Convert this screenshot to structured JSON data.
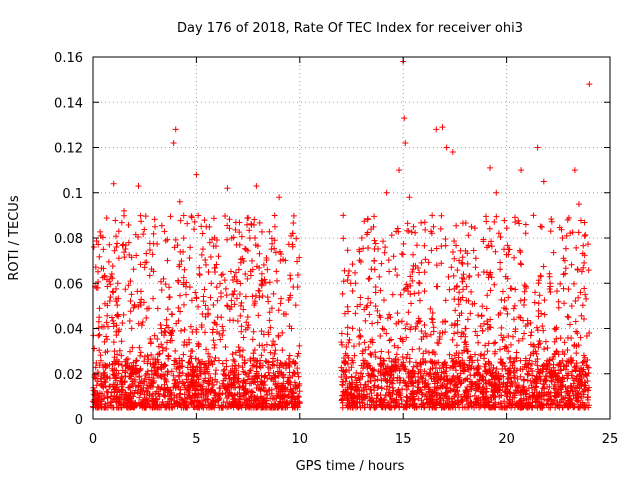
{
  "chart_data": {
    "type": "scatter",
    "title": "Day 176 of 2018, Rate Of TEC Index for receiver ohi3",
    "xlabel": "GPS time / hours",
    "ylabel": "ROTI / TECUs",
    "xlim": [
      0,
      25
    ],
    "ylim": [
      0,
      0.16
    ],
    "xticks": [
      0,
      5,
      10,
      15,
      20,
      25
    ],
    "xtick_labels": [
      "0",
      "5",
      "10",
      "15",
      "20",
      "25"
    ],
    "yticks": [
      0,
      0.02,
      0.04,
      0.06,
      0.08,
      0.1,
      0.12,
      0.14,
      0.16
    ],
    "ytick_labels": [
      "0",
      "0.02",
      "0.04",
      "0.06",
      "0.08",
      "0.1",
      "0.12",
      "0.14",
      "0.16"
    ],
    "grid": true,
    "marker": "+",
    "series": [
      {
        "name": "ROTI",
        "color": "#ff0000",
        "data_gap_hours": [
          10,
          12
        ],
        "points": [
          [
            0.1,
            0.012
          ],
          [
            0.3,
            0.045
          ],
          [
            0.5,
            0.075
          ],
          [
            0.7,
            0.03
          ],
          [
            1.0,
            0.104
          ],
          [
            1.2,
            0.06
          ],
          [
            1.5,
            0.092
          ],
          [
            1.8,
            0.02
          ],
          [
            2.0,
            0.05
          ],
          [
            2.2,
            0.103
          ],
          [
            2.5,
            0.067
          ],
          [
            2.8,
            0.015
          ],
          [
            3.0,
            0.085
          ],
          [
            3.3,
            0.04
          ],
          [
            3.6,
            0.07
          ],
          [
            3.9,
            0.122
          ],
          [
            4.0,
            0.128
          ],
          [
            4.2,
            0.096
          ],
          [
            4.5,
            0.055
          ],
          [
            4.8,
            0.03
          ],
          [
            5.0,
            0.108
          ],
          [
            5.3,
            0.082
          ],
          [
            5.6,
            0.02
          ],
          [
            5.9,
            0.065
          ],
          [
            6.2,
            0.045
          ],
          [
            6.5,
            0.102
          ],
          [
            6.8,
            0.055
          ],
          [
            7.1,
            0.03
          ],
          [
            7.4,
            0.075
          ],
          [
            7.7,
            0.018
          ],
          [
            7.9,
            0.103
          ],
          [
            8.2,
            0.06
          ],
          [
            8.5,
            0.025
          ],
          [
            8.8,
            0.085
          ],
          [
            9.0,
            0.098
          ],
          [
            9.3,
            0.07
          ],
          [
            9.6,
            0.04
          ],
          [
            9.8,
            0.015
          ],
          [
            12.1,
            0.09
          ],
          [
            12.4,
            0.035
          ],
          [
            12.7,
            0.06
          ],
          [
            13.0,
            0.08
          ],
          [
            13.3,
            0.02
          ],
          [
            13.6,
            0.07
          ],
          [
            13.9,
            0.045
          ],
          [
            14.2,
            0.1
          ],
          [
            14.5,
            0.055
          ],
          [
            14.8,
            0.11
          ],
          [
            15.0,
            0.158
          ],
          [
            15.05,
            0.133
          ],
          [
            15.1,
            0.122
          ],
          [
            15.3,
            0.098
          ],
          [
            15.5,
            0.085
          ],
          [
            15.8,
            0.06
          ],
          [
            16.1,
            0.03
          ],
          [
            16.4,
            0.09
          ],
          [
            16.6,
            0.128
          ],
          [
            16.9,
            0.129
          ],
          [
            17.1,
            0.12
          ],
          [
            17.4,
            0.118
          ],
          [
            17.7,
            0.07
          ],
          [
            18.0,
            0.04
          ],
          [
            18.3,
            0.085
          ],
          [
            18.6,
            0.02
          ],
          [
            18.9,
            0.065
          ],
          [
            19.2,
            0.111
          ],
          [
            19.5,
            0.1
          ],
          [
            19.8,
            0.035
          ],
          [
            20.1,
            0.075
          ],
          [
            20.4,
            0.05
          ],
          [
            20.7,
            0.11
          ],
          [
            21.0,
            0.02
          ],
          [
            21.3,
            0.09
          ],
          [
            21.5,
            0.12
          ],
          [
            21.8,
            0.105
          ],
          [
            22.1,
            0.06
          ],
          [
            22.4,
            0.03
          ],
          [
            22.7,
            0.08
          ],
          [
            23.0,
            0.045
          ],
          [
            23.3,
            0.11
          ],
          [
            23.5,
            0.095
          ],
          [
            23.8,
            0.055
          ],
          [
            24.0,
            0.148
          ]
        ]
      }
    ]
  }
}
